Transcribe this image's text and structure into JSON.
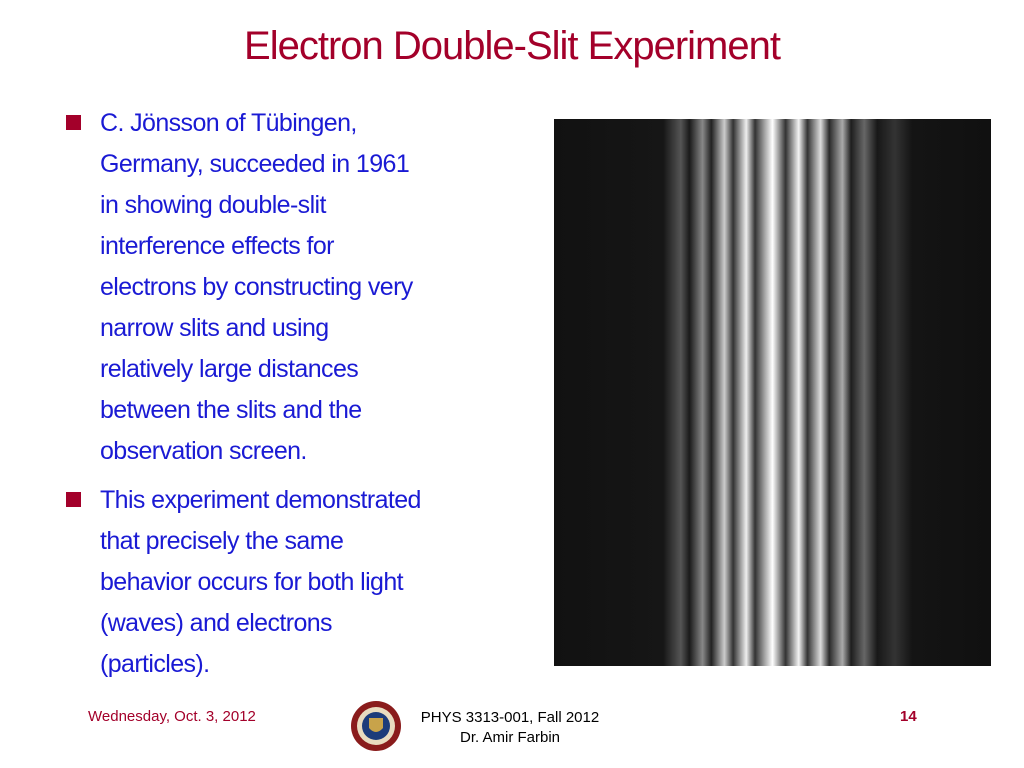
{
  "slide": {
    "title": "Electron Double-Slit Experiment",
    "bullets": [
      {
        "lines": [
          "C. Jönsson of Tübingen,",
          "Germany, succeeded in 1961",
          "in showing double-slit",
          "interference effects for",
          "electrons by constructing very",
          "narrow slits and using",
          "relatively large distances",
          "between the slits and the",
          "observation screen."
        ]
      },
      {
        "lines": [
          "This experiment demonstrated",
          "that precisely the same",
          "behavior occurs for both light",
          "(waves) and electrons",
          "(particles)."
        ]
      }
    ],
    "footer": {
      "date": "Wednesday, Oct. 3, 2012",
      "course": "PHYS 3313-001, Fall 2012",
      "instructor": "Dr. Amir Farbin",
      "page": "14"
    }
  }
}
